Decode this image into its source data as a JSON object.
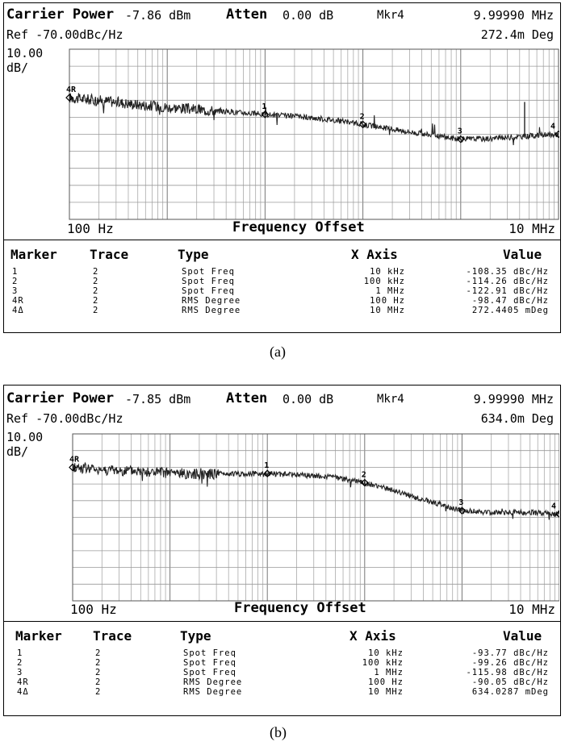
{
  "figures": [
    {
      "header": {
        "carrier_label": "Carrier Power",
        "carrier_value": "-7.86 dBm",
        "atten_label": "Atten",
        "atten_value": "0.00 dB",
        "marker_label": "Mkr4",
        "marker_freq": "9.99990 MHz",
        "ref_text": "Ref -70.00dBc/Hz",
        "marker_value": "272.4m Deg",
        "scale_value": "10.00",
        "scale_unit": "dB/"
      },
      "axis": {
        "x_start": "100 Hz",
        "x_title": "Frequency Offset",
        "x_end": "10 MHz"
      },
      "table": {
        "headers": [
          "Marker",
          "Trace",
          "Type",
          "X Axis",
          "Value"
        ],
        "rows": [
          [
            "1",
            "2",
            "Spot Freq",
            "10 kHz",
            "-108.35 dBc/Hz"
          ],
          [
            "2",
            "2",
            "Spot Freq",
            "100 kHz",
            "-114.26 dBc/Hz"
          ],
          [
            "3",
            "2",
            "Spot Freq",
            "1 MHz",
            "-122.91 dBc/Hz"
          ],
          [
            "4R",
            "2",
            "RMS Degree",
            "100 Hz",
            "-98.47 dBc/Hz"
          ],
          [
            "4Δ",
            "2",
            "RMS Degree",
            "10 MHz",
            "272.4405 mDeg"
          ]
        ]
      },
      "caption": "(a)"
    },
    {
      "header": {
        "carrier_label": "Carrier Power",
        "carrier_value": "-7.85 dBm",
        "atten_label": "Atten",
        "atten_value": "0.00 dB",
        "marker_label": "Mkr4",
        "marker_freq": "9.99990 MHz",
        "ref_text": "Ref -70.00dBc/Hz",
        "marker_value": "634.0m Deg",
        "scale_value": "10.00",
        "scale_unit": "dB/"
      },
      "axis": {
        "x_start": "100 Hz",
        "x_title": "Frequency Offset",
        "x_end": "10 MHz"
      },
      "table": {
        "headers": [
          "Marker",
          "Trace",
          "Type",
          "X Axis",
          "Value"
        ],
        "rows": [
          [
            "1",
            "2",
            "Spot Freq",
            "10 kHz",
            "-93.77 dBc/Hz"
          ],
          [
            "2",
            "2",
            "Spot Freq",
            "100 kHz",
            "-99.26 dBc/Hz"
          ],
          [
            "3",
            "2",
            "Spot Freq",
            "1 MHz",
            "-115.98 dBc/Hz"
          ],
          [
            "4R",
            "2",
            "RMS Degree",
            "100 Hz",
            "-90.05 dBc/Hz"
          ],
          [
            "4Δ",
            "2",
            "RMS Degree",
            "10 MHz",
            "634.0287 mDeg"
          ]
        ]
      },
      "caption": "(b)"
    }
  ],
  "chart_data": [
    {
      "type": "line",
      "x_scale": "log",
      "xlim": [
        100,
        10000000
      ],
      "ylim": [
        -170,
        -70
      ],
      "grid": true,
      "series": [
        {
          "x": [
            100,
            200,
            500,
            1000,
            2000,
            5000,
            10000,
            20000,
            50000,
            100000,
            200000,
            500000,
            1000000,
            2000000,
            5000000,
            10000000
          ],
          "y": [
            -98.5,
            -100,
            -102.5,
            -104,
            -105.5,
            -107,
            -108.35,
            -109.5,
            -111.5,
            -114.26,
            -117,
            -120.5,
            -122.91,
            -122.5,
            -121,
            -120
          ]
        }
      ],
      "markers": [
        {
          "label": "4R",
          "x": 100,
          "y": -98.47
        },
        {
          "label": "1",
          "x": 10000,
          "y": -108.35
        },
        {
          "label": "2",
          "x": 100000,
          "y": -114.26
        },
        {
          "label": "3",
          "x": 1000000,
          "y": -122.91
        },
        {
          "label": "4",
          "x": 10000000,
          "y": -120
        }
      ],
      "spurs": [
        {
          "x": 4500000,
          "y": -101
        }
      ]
    },
    {
      "type": "line",
      "x_scale": "log",
      "xlim": [
        100,
        10000000
      ],
      "ylim": [
        -170,
        -70
      ],
      "grid": true,
      "series": [
        {
          "x": [
            100,
            200,
            500,
            1000,
            2000,
            5000,
            10000,
            20000,
            50000,
            100000,
            200000,
            500000,
            1000000,
            2000000,
            5000000,
            10000000
          ],
          "y": [
            -90,
            -91.5,
            -92.5,
            -93.5,
            -94,
            -94,
            -93.77,
            -94.5,
            -96,
            -99.26,
            -104,
            -111,
            -115.98,
            -117,
            -117,
            -118
          ]
        }
      ],
      "markers": [
        {
          "label": "4R",
          "x": 100,
          "y": -90.05
        },
        {
          "label": "1",
          "x": 10000,
          "y": -93.77
        },
        {
          "label": "2",
          "x": 100000,
          "y": -99.26
        },
        {
          "label": "3",
          "x": 1000000,
          "y": -115.98
        },
        {
          "label": "4",
          "x": 10000000,
          "y": -118
        }
      ],
      "spurs": []
    }
  ]
}
